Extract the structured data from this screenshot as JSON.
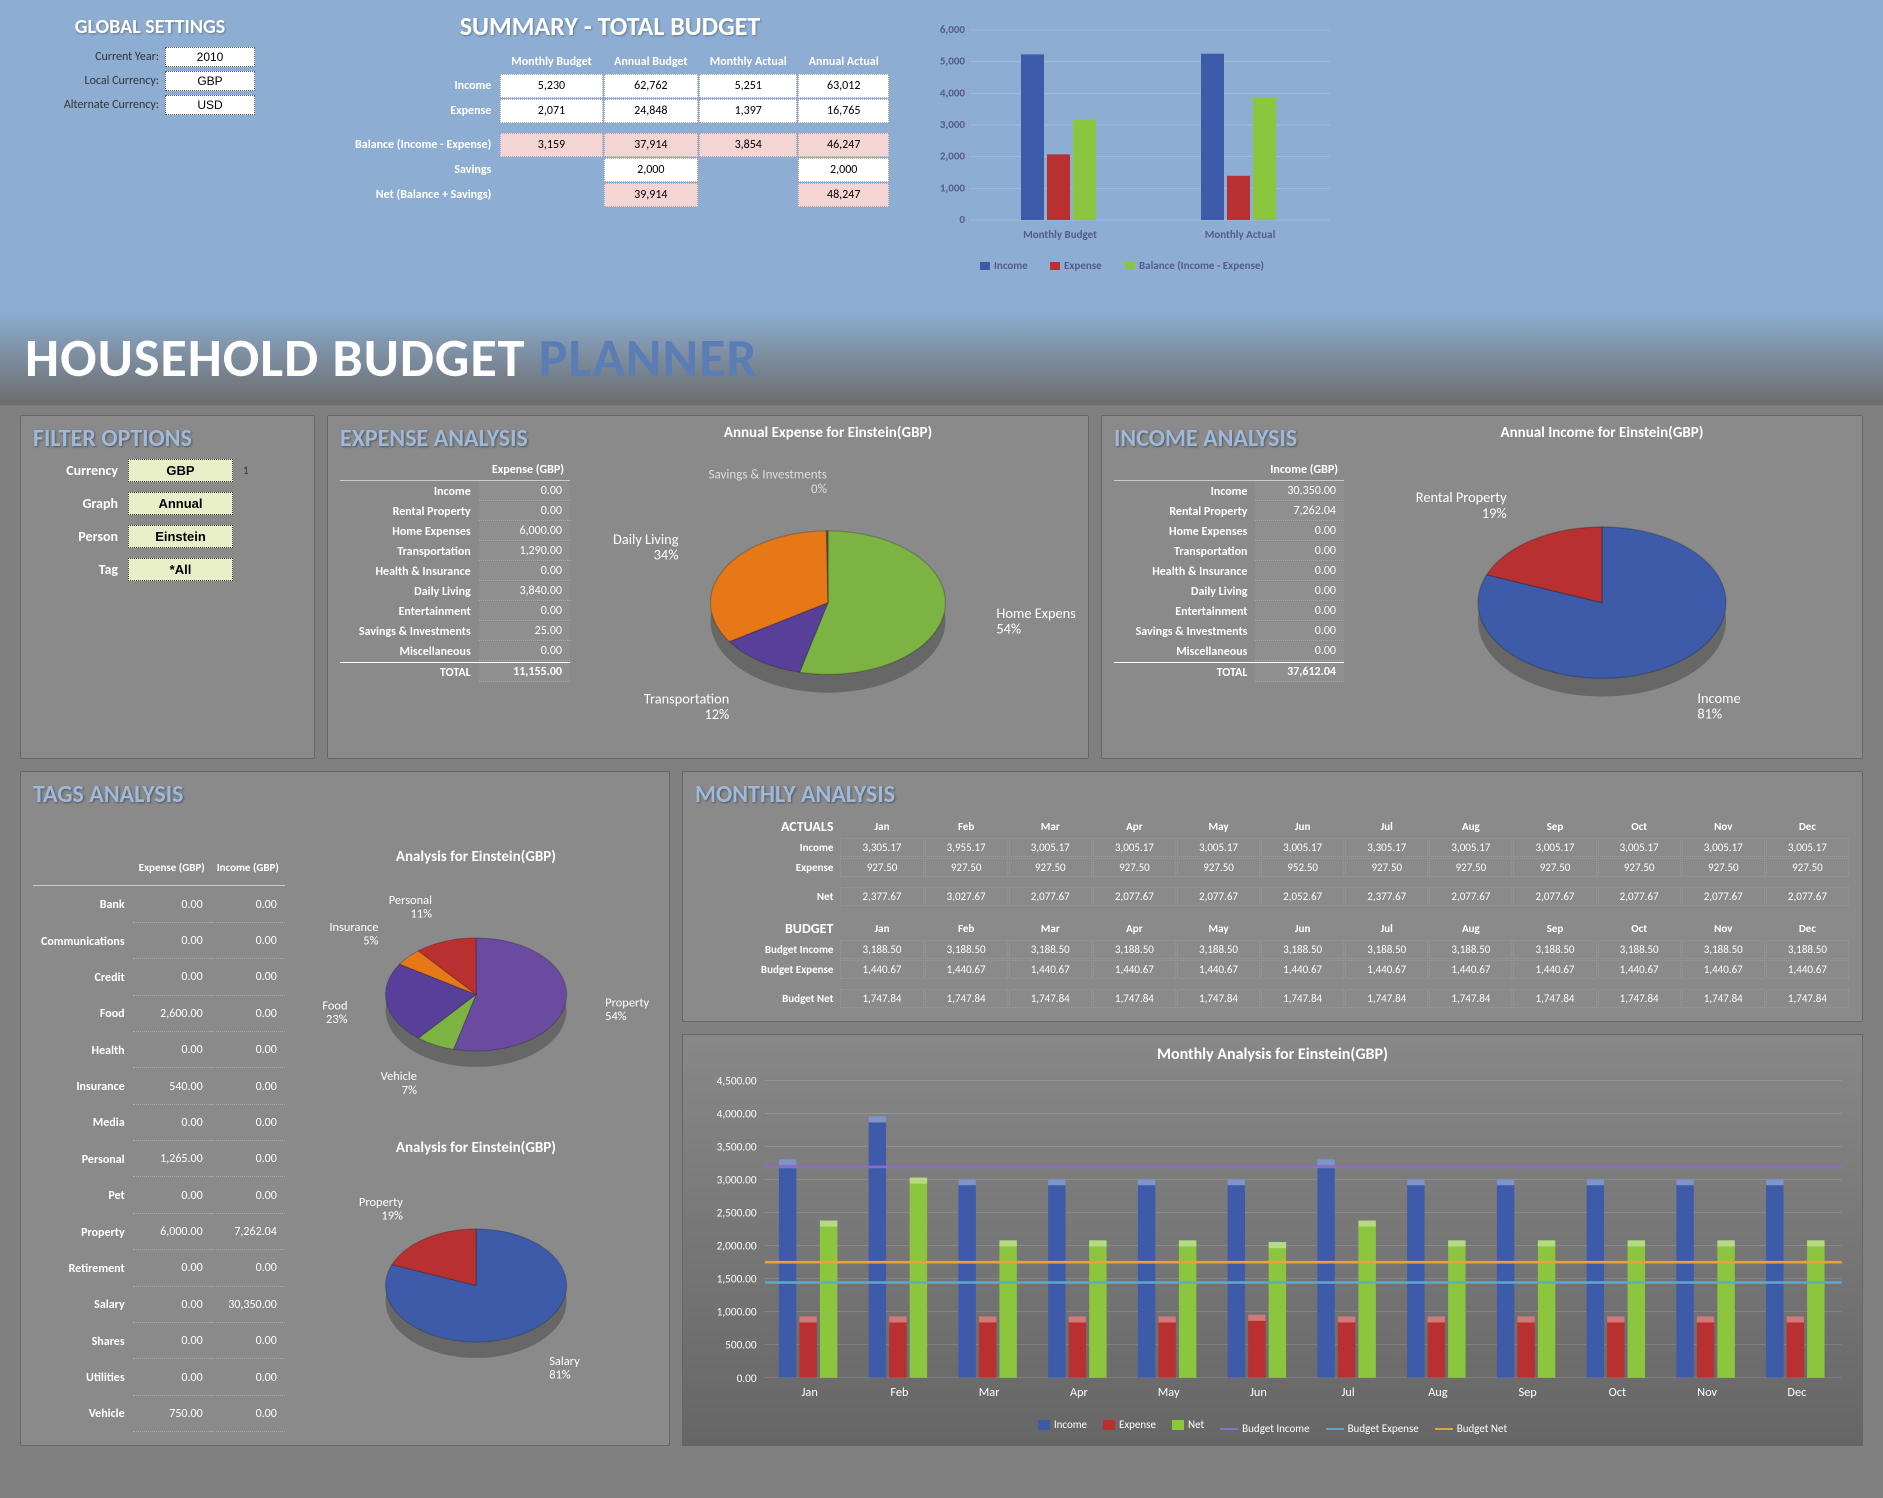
{
  "global": {
    "title": "GLOBAL SETTINGS",
    "rows": [
      {
        "label": "Current Year:",
        "value": "2010"
      },
      {
        "label": "Local Currency:",
        "value": "GBP"
      },
      {
        "label": "Alternate Currency:",
        "value": "USD"
      }
    ]
  },
  "summary": {
    "title": "SUMMARY - TOTAL BUDGET",
    "headers": [
      "",
      "Monthly Budget",
      "Annual Budget",
      "Monthly Actual",
      "Annual Actual"
    ],
    "rows": [
      {
        "label": "Income",
        "vals": [
          "5,230",
          "62,762",
          "5,251",
          "63,012"
        ]
      },
      {
        "label": "Expense",
        "vals": [
          "2,071",
          "24,848",
          "1,397",
          "16,765"
        ]
      }
    ],
    "balance": {
      "label": "Balance (Income - Expense)",
      "vals": [
        "3,159",
        "37,914",
        "3,854",
        "46,247"
      ]
    },
    "savings": {
      "label": "Savings",
      "vals": [
        "",
        "2,000",
        "",
        "2,000"
      ]
    },
    "net": {
      "label": "Net (Balance + Savings)",
      "vals": [
        "",
        "39,914",
        "",
        "48,247"
      ]
    }
  },
  "summary_chart": {
    "ymax": 6000,
    "ytick": 1000,
    "groups": [
      "Monthly Budget",
      "Monthly Actual"
    ],
    "series": [
      {
        "name": "Income",
        "color": "#3d5ba9",
        "vals": [
          5230,
          5251
        ]
      },
      {
        "name": "Expense",
        "color": "#b83030",
        "vals": [
          2071,
          1397
        ]
      },
      {
        "name": "Balance (Income - Expense)",
        "color": "#8cc63f",
        "vals": [
          3159,
          3854
        ]
      }
    ]
  },
  "mega_title": {
    "part1": "HOUSEHOLD BUDGET ",
    "part2": "PLANNER"
  },
  "filter": {
    "title": "FILTER OPTIONS",
    "rows": [
      {
        "label": "Currency",
        "value": "GBP",
        "extra": "1"
      },
      {
        "label": "Graph",
        "value": "Annual",
        "extra": ""
      },
      {
        "label": "Person",
        "value": "Einstein",
        "extra": ""
      },
      {
        "label": "Tag",
        "value": "*All",
        "extra": ""
      }
    ]
  },
  "expense_analysis": {
    "title": "EXPENSE ANALYSIS",
    "col_header": "Expense  (GBP)",
    "rows": [
      {
        "cat": "Income",
        "amt": "0.00"
      },
      {
        "cat": "Rental Property",
        "amt": "0.00"
      },
      {
        "cat": "Home Expenses",
        "amt": "6,000.00"
      },
      {
        "cat": "Transportation",
        "amt": "1,290.00"
      },
      {
        "cat": "Health & Insurance",
        "amt": "0.00"
      },
      {
        "cat": "Daily Living",
        "amt": "3,840.00"
      },
      {
        "cat": "Entertainment",
        "amt": "0.00"
      },
      {
        "cat": "Savings & Investments",
        "amt": "25.00"
      },
      {
        "cat": "Miscellaneous",
        "amt": "0.00"
      }
    ],
    "total": {
      "cat": "TOTAL",
      "amt": "11,155.00"
    },
    "pie_title": "Annual Expense for Einstein(GBP)",
    "pie": [
      {
        "label": "Home Expenses",
        "pct": "54%",
        "val": 54,
        "color": "#7db342"
      },
      {
        "label": "Transportation",
        "pct": "12%",
        "val": 12,
        "color": "#58409a"
      },
      {
        "label": "Daily Living",
        "pct": "34%",
        "val": 34,
        "color": "#e67817"
      },
      {
        "label": "Savings & Investments",
        "pct": "0%",
        "val": 0.2,
        "color": "#555"
      }
    ]
  },
  "income_analysis": {
    "title": "INCOME ANALYSIS",
    "col_header": "Income  (GBP)",
    "rows": [
      {
        "cat": "Income",
        "amt": "30,350.00"
      },
      {
        "cat": "Rental Property",
        "amt": "7,262.04"
      },
      {
        "cat": "Home Expenses",
        "amt": "0.00"
      },
      {
        "cat": "Transportation",
        "amt": "0.00"
      },
      {
        "cat": "Health & Insurance",
        "amt": "0.00"
      },
      {
        "cat": "Daily Living",
        "amt": "0.00"
      },
      {
        "cat": "Entertainment",
        "amt": "0.00"
      },
      {
        "cat": "Savings & Investments",
        "amt": "0.00"
      },
      {
        "cat": "Miscellaneous",
        "amt": "0.00"
      }
    ],
    "total": {
      "cat": "TOTAL",
      "amt": "37,612.04"
    },
    "pie_title": "Annual Income for Einstein(GBP)",
    "pie": [
      {
        "label": "Income",
        "pct": "81%",
        "val": 81,
        "color": "#3d5ba9"
      },
      {
        "label": "Rental Property",
        "pct": "19%",
        "val": 19,
        "color": "#b83030"
      }
    ]
  },
  "tags_analysis": {
    "title": "TAGS ANALYSIS",
    "headers": [
      "",
      "Expense  (GBP)",
      "Income  (GBP)"
    ],
    "rows": [
      {
        "cat": "Bank",
        "exp": "0.00",
        "inc": "0.00"
      },
      {
        "cat": "Communications",
        "exp": "0.00",
        "inc": "0.00"
      },
      {
        "cat": "Credit",
        "exp": "0.00",
        "inc": "0.00"
      },
      {
        "cat": "Food",
        "exp": "2,600.00",
        "inc": "0.00"
      },
      {
        "cat": "Health",
        "exp": "0.00",
        "inc": "0.00"
      },
      {
        "cat": "Insurance",
        "exp": "540.00",
        "inc": "0.00"
      },
      {
        "cat": "Media",
        "exp": "0.00",
        "inc": "0.00"
      },
      {
        "cat": "Personal",
        "exp": "1,265.00",
        "inc": "0.00"
      },
      {
        "cat": "Pet",
        "exp": "0.00",
        "inc": "0.00"
      },
      {
        "cat": "Property",
        "exp": "6,000.00",
        "inc": "7,262.04"
      },
      {
        "cat": "Retirement",
        "exp": "0.00",
        "inc": "0.00"
      },
      {
        "cat": "Salary",
        "exp": "0.00",
        "inc": "30,350.00"
      },
      {
        "cat": "Shares",
        "exp": "0.00",
        "inc": "0.00"
      },
      {
        "cat": "Utilities",
        "exp": "0.00",
        "inc": "0.00"
      },
      {
        "cat": "Vehicle",
        "exp": "750.00",
        "inc": "0.00"
      }
    ],
    "pie1_title": "Analysis for Einstein(GBP)",
    "pie1": [
      {
        "label": "Property",
        "pct": "54%",
        "val": 54,
        "color": "#6a4ba0"
      },
      {
        "label": "Vehicle",
        "pct": "7%",
        "val": 7,
        "color": "#7db342"
      },
      {
        "label": "Food",
        "pct": "23%",
        "val": 23,
        "color": "#58409a"
      },
      {
        "label": "Insurance",
        "pct": "5%",
        "val": 5,
        "color": "#e67817"
      },
      {
        "label": "Personal",
        "pct": "11%",
        "val": 11,
        "color": "#b83030"
      }
    ],
    "pie2_title": "Analysis for Einstein(GBP)",
    "pie2": [
      {
        "label": "Salary",
        "pct": "81%",
        "val": 81,
        "color": "#3d5ba9"
      },
      {
        "label": "Property",
        "pct": "19%",
        "val": 19,
        "color": "#b83030"
      }
    ]
  },
  "monthly": {
    "title": "MONTHLY ANALYSIS",
    "months": [
      "Jan",
      "Feb",
      "Mar",
      "Apr",
      "May",
      "Jun",
      "Jul",
      "Aug",
      "Sep",
      "Oct",
      "Nov",
      "Dec"
    ],
    "actuals_title": "ACTUALS",
    "actuals": [
      {
        "label": "Income",
        "vals": [
          "3,305.17",
          "3,955.17",
          "3,005.17",
          "3,005.17",
          "3,005.17",
          "3,005.17",
          "3,305.17",
          "3,005.17",
          "3,005.17",
          "3,005.17",
          "3,005.17",
          "3,005.17"
        ]
      },
      {
        "label": "Expense",
        "vals": [
          "927.50",
          "927.50",
          "927.50",
          "927.50",
          "927.50",
          "952.50",
          "927.50",
          "927.50",
          "927.50",
          "927.50",
          "927.50",
          "927.50"
        ]
      }
    ],
    "net_label": "Net",
    "net_vals": [
      "2,377.67",
      "3,027.67",
      "2,077.67",
      "2,077.67",
      "2,077.67",
      "2,052.67",
      "2,377.67",
      "2,077.67",
      "2,077.67",
      "2,077.67",
      "2,077.67",
      "2,077.67"
    ],
    "budget_title": "BUDGET",
    "budget": [
      {
        "label": "Budget Income",
        "vals": [
          "3,188.50",
          "3,188.50",
          "3,188.50",
          "3,188.50",
          "3,188.50",
          "3,188.50",
          "3,188.50",
          "3,188.50",
          "3,188.50",
          "3,188.50",
          "3,188.50",
          "3,188.50"
        ]
      },
      {
        "label": "Budget Expense",
        "vals": [
          "1,440.67",
          "1,440.67",
          "1,440.67",
          "1,440.67",
          "1,440.67",
          "1,440.67",
          "1,440.67",
          "1,440.67",
          "1,440.67",
          "1,440.67",
          "1,440.67",
          "1,440.67"
        ]
      }
    ],
    "budget_net_label": "Budget Net",
    "budget_net_vals": [
      "1,747.84",
      "1,747.84",
      "1,747.84",
      "1,747.84",
      "1,747.84",
      "1,747.84",
      "1,747.84",
      "1,747.84",
      "1,747.84",
      "1,747.84",
      "1,747.84",
      "1,747.84"
    ]
  },
  "monthly_chart": {
    "title": "Monthly Analysis for Einstein(GBP)",
    "ymax": 4500,
    "ytick": 500,
    "months": [
      "Jan",
      "Feb",
      "Mar",
      "Apr",
      "May",
      "Jun",
      "Jul",
      "Aug",
      "Sep",
      "Oct",
      "Nov",
      "Dec"
    ],
    "bars": [
      {
        "name": "Income",
        "color": "#3d5ba9",
        "vals": [
          3305,
          3955,
          3005,
          3005,
          3005,
          3005,
          3305,
          3005,
          3005,
          3005,
          3005,
          3005
        ]
      },
      {
        "name": "Expense",
        "color": "#b83030",
        "vals": [
          928,
          928,
          928,
          928,
          928,
          953,
          928,
          928,
          928,
          928,
          928,
          928
        ]
      },
      {
        "name": "Net",
        "color": "#8cc63f",
        "vals": [
          2378,
          3028,
          2078,
          2078,
          2078,
          2053,
          2378,
          2078,
          2078,
          2078,
          2078,
          2078
        ]
      }
    ],
    "lines": [
      {
        "name": "Budget Income",
        "color": "#8a6fc7",
        "val": 3188.5
      },
      {
        "name": "Budget Expense",
        "color": "#5fa8c7",
        "val": 1440.67
      },
      {
        "name": "Budget Net",
        "color": "#e6a23c",
        "val": 1747.84
      }
    ]
  }
}
